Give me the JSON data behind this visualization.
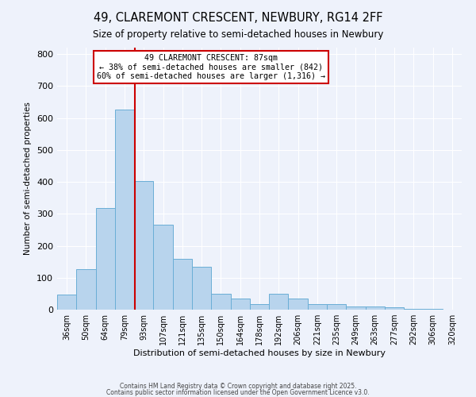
{
  "title": "49, CLAREMONT CRESCENT, NEWBURY, RG14 2FF",
  "subtitle": "Size of property relative to semi-detached houses in Newbury",
  "xlabel": "Distribution of semi-detached houses by size in Newbury",
  "ylabel": "Number of semi-detached properties",
  "bar_labels": [
    "36sqm",
    "50sqm",
    "64sqm",
    "79sqm",
    "93sqm",
    "107sqm",
    "121sqm",
    "135sqm",
    "150sqm",
    "164sqm",
    "178sqm",
    "192sqm",
    "206sqm",
    "221sqm",
    "235sqm",
    "249sqm",
    "263sqm",
    "277sqm",
    "292sqm",
    "306sqm",
    "320sqm"
  ],
  "bar_values": [
    48,
    127,
    318,
    625,
    403,
    265,
    160,
    135,
    50,
    35,
    18,
    50,
    35,
    18,
    18,
    10,
    10,
    7,
    2,
    2,
    0
  ],
  "bar_color": "#b8d4ed",
  "bar_edge_color": "#6aaed6",
  "background_color": "#eef2fb",
  "grid_color": "#ffffff",
  "property_label": "49 CLAREMONT CRESCENT: 87sqm",
  "pct_smaller": 38,
  "pct_larger": 60,
  "n_smaller": 842,
  "n_larger": 1316,
  "vline_color": "#cc0000",
  "annotation_box_edge": "#cc0000",
  "ylim": [
    0,
    820
  ],
  "yticks": [
    0,
    100,
    200,
    300,
    400,
    500,
    600,
    700,
    800
  ],
  "vline_x": 3.55,
  "footer1": "Contains HM Land Registry data © Crown copyright and database right 2025.",
  "footer2": "Contains public sector information licensed under the Open Government Licence v3.0."
}
